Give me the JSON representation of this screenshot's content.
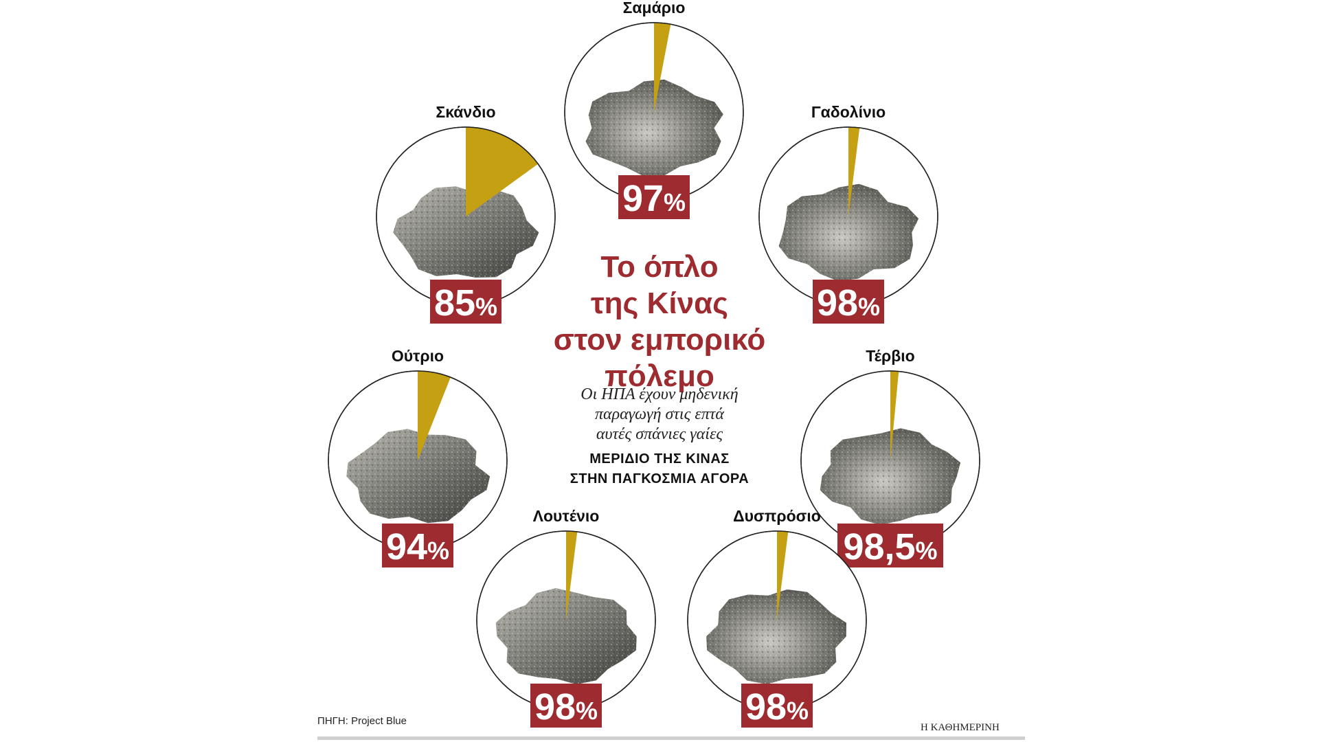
{
  "header": {
    "title_lines": [
      "Το όπλο",
      "της Κίνας",
      "στον εμπορικό",
      "πόλεμο"
    ],
    "subtitle_lines": [
      "Οι ΗΠΑ έχουν μηδενική",
      "παραγωγή στις επτά",
      "αυτές σπάνιες γαίες"
    ],
    "share_label_lines": [
      "ΜΕΡΙΔΙΟ ΤΗΣ ΚΙΝΑΣ",
      "ΣΤΗΝ ΠΑΓΚΟΣΜΙΑ ΑΓΟΡΑ"
    ]
  },
  "footer": {
    "source": "ΠΗΓΗ: Project Blue",
    "publisher": "Η ΚΑΘΗΜΕΡΙΝΗ"
  },
  "colors": {
    "accent_red": "#9d2b2f",
    "slice_gold": "#c4a012",
    "circle_stroke": "#222222"
  },
  "chart_data": {
    "type": "pie",
    "title": "Το όπλο της Κίνας στον εμπορικό πόλεμο",
    "note": "Each circle shows China's share (large sector, mineral photo) vs rest of world (small gold sector).",
    "series": [
      {
        "name": "Σαμάριο",
        "china_share": 97,
        "rest_share": 3,
        "label": "97%"
      },
      {
        "name": "Σκάνδιο",
        "china_share": 85,
        "rest_share": 15,
        "label": "85%"
      },
      {
        "name": "Γαδολίνιο",
        "china_share": 98,
        "rest_share": 2,
        "label": "98%"
      },
      {
        "name": "Ούτριο",
        "china_share": 94,
        "rest_share": 6,
        "label": "94%"
      },
      {
        "name": "Τέρβιο",
        "china_share": 98.5,
        "rest_share": 1.5,
        "label": "98,5%"
      },
      {
        "name": "Λουτένιο",
        "china_share": 98,
        "rest_share": 2,
        "label": "98%"
      },
      {
        "name": "Δυσπρόσιο",
        "china_share": 98,
        "rest_share": 2,
        "label": "98%"
      }
    ]
  }
}
